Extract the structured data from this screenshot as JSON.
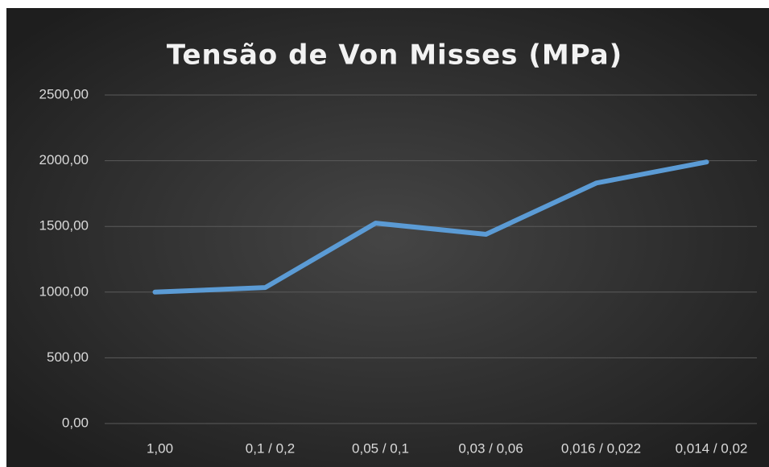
{
  "chart_data": {
    "type": "line",
    "title": "Tensão de Von Misses (MPa)",
    "categories": [
      "1,00",
      "0,1 / 0,2",
      "0,05 / 0,1",
      "0,03 / 0,06",
      "0,016 / 0,022",
      "0,014 / 0,02"
    ],
    "series": [
      {
        "name": "Tensão de Von Misses (MPa)",
        "color": "#5b9bd5",
        "values": [
          1000,
          1035,
          1525,
          1440,
          1830,
          1990
        ]
      }
    ],
    "ylim": [
      0,
      2500
    ],
    "yticks": [
      {
        "value": 0,
        "label": "0,00"
      },
      {
        "value": 500,
        "label": "500,00"
      },
      {
        "value": 1000,
        "label": "1000,00"
      },
      {
        "value": 1500,
        "label": "1500,00"
      },
      {
        "value": 2000,
        "label": "2000,00"
      },
      {
        "value": 2500,
        "label": "2500,00"
      }
    ],
    "grid": true
  }
}
